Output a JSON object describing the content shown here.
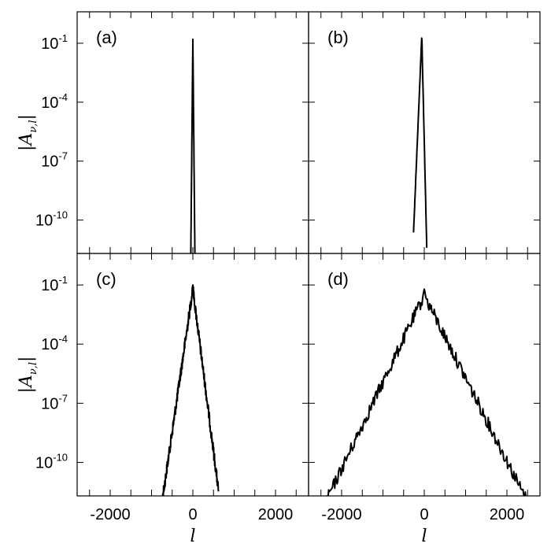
{
  "chart_data": {
    "type": "line",
    "layout": "2x2",
    "xlabel": "l",
    "ylabel": "|A_{ν,l}|",
    "ylabel_parts": {
      "main": "|A",
      "sub": "ν,l",
      "end": "|"
    },
    "xlim": [
      -2800,
      2800
    ],
    "ylim_log10": [
      -11.7,
      0.6
    ],
    "yscale": "log",
    "xticks": [
      -2000,
      0,
      2000
    ],
    "xtick_labels": [
      "-2000",
      "0",
      "2000"
    ],
    "yticks_exp": [
      -1,
      -4,
      -7,
      -10
    ],
    "ytick_base": "10",
    "ytick_exponents": [
      "-1",
      "-4",
      "-7",
      "-10"
    ],
    "panels": [
      {
        "label": "(a)",
        "peak_x": 0,
        "peak_log10": -0.8,
        "left_slope": 0.22,
        "right_slope": 0.22,
        "noise": 0.0,
        "x_range": [
          -80,
          80
        ]
      },
      {
        "label": "(b)",
        "peak_x": -60,
        "peak_log10": -0.6,
        "left_slope": 0.05,
        "right_slope": 0.09,
        "noise": 0.05,
        "x_range": [
          -260,
          60
        ]
      },
      {
        "label": "(c)",
        "peak_x": 0,
        "peak_log10": -0.9,
        "left_slope": 0.0145,
        "right_slope": 0.0165,
        "noise": 0.6,
        "x_range": [
          -830,
          620
        ]
      },
      {
        "label": "(d)",
        "peak_x": 0,
        "peak_log10": -1.2,
        "left_slope": 0.0044,
        "right_slope": 0.0042,
        "noise": 0.65,
        "x_range": [
          -2800,
          2800
        ]
      }
    ]
  }
}
